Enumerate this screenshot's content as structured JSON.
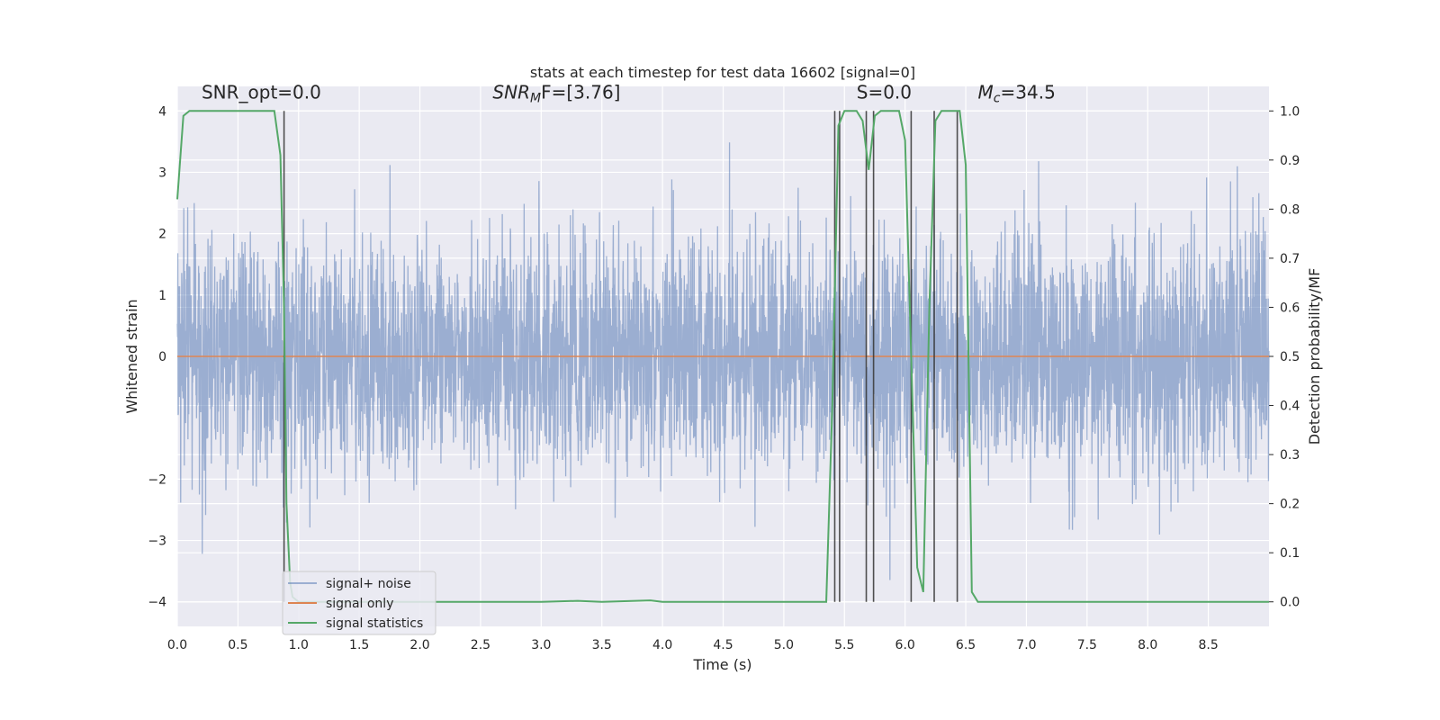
{
  "chart_data": {
    "type": "line",
    "title": "stats at each timestep for test data 16602 [signal=0]",
    "xlabel": "Time (s)",
    "ylabel": "Whitened strain",
    "ylabel_right": "Detection probability/MF",
    "xlim": [
      0.0,
      9.0
    ],
    "ylim_left": [
      -4.4,
      4.4
    ],
    "ylim_right": [
      -0.05,
      1.05
    ],
    "x_ticks": [
      "0.0",
      "0.5",
      "1.0",
      "1.5",
      "2.0",
      "2.5",
      "3.0",
      "3.5",
      "4.0",
      "4.5",
      "5.0",
      "5.5",
      "6.0",
      "6.5",
      "7.0",
      "7.5",
      "8.0",
      "8.5"
    ],
    "y_left_ticks": [
      "4",
      "3",
      "2",
      "1",
      "0",
      "−2",
      "−3",
      "−4"
    ],
    "y_right_ticks": [
      "1.0",
      "0.9",
      "0.8",
      "0.7",
      "0.6",
      "0.5",
      "0.4",
      "0.3",
      "0.2",
      "0.1",
      "0.0"
    ],
    "grid": true,
    "legend_position": "bottom-left",
    "annotations": [
      {
        "text": "SNR_opt=0.0",
        "x": 0.2,
        "y": 1.025
      },
      {
        "text_main": "SNR",
        "text_sub": "M",
        "text_tail": "F=[3.76]",
        "x": 2.6,
        "y": 1.025
      },
      {
        "text": "S=0.0",
        "x": 5.6,
        "y": 1.025
      },
      {
        "text_main": "M",
        "text_sub": "c",
        "text_tail": "=34.5",
        "x": 6.6,
        "y": 1.025
      }
    ],
    "series": [
      {
        "name": "signal+ noise",
        "color": "#4c72b0",
        "alpha": 0.5,
        "axis": "left",
        "kind": "noise",
        "amplitude_sd": 0.95
      },
      {
        "name": "signal only",
        "color": "#dd8452",
        "axis": "left",
        "values_constant": 0.0
      },
      {
        "name": "signal statistics",
        "color": "#55a868",
        "axis": "right",
        "x": [
          0.0,
          0.05,
          0.1,
          0.2,
          0.3,
          0.4,
          0.5,
          0.6,
          0.7,
          0.8,
          0.85,
          0.88,
          0.9,
          0.93,
          0.95,
          1.0,
          1.5,
          2.0,
          2.5,
          3.0,
          3.3,
          3.5,
          3.9,
          4.0,
          4.5,
          5.0,
          5.35,
          5.4,
          5.45,
          5.5,
          5.6,
          5.65,
          5.7,
          5.75,
          5.8,
          5.85,
          5.95,
          6.0,
          6.05,
          6.1,
          6.15,
          6.2,
          6.25,
          6.3,
          6.35,
          6.45,
          6.5,
          6.55,
          6.6,
          6.7,
          7.0,
          8.0,
          9.0
        ],
        "y": [
          0.82,
          0.99,
          1.0,
          1.0,
          1.0,
          1.0,
          1.0,
          1.0,
          1.0,
          1.0,
          0.91,
          0.6,
          0.2,
          0.04,
          0.01,
          0.0,
          0.0,
          0.0,
          0.0,
          0.0,
          0.002,
          0.0,
          0.003,
          0.0,
          0.0,
          0.0,
          0.0,
          0.4,
          0.97,
          1.0,
          1.0,
          0.98,
          0.88,
          0.99,
          1.0,
          1.0,
          1.0,
          0.94,
          0.5,
          0.07,
          0.02,
          0.6,
          0.98,
          1.0,
          1.0,
          1.0,
          0.89,
          0.02,
          0.0,
          0.0,
          0.0,
          0.0,
          0.0
        ]
      },
      {
        "name": "",
        "kind": "vlines",
        "color": "#333333",
        "axis": "right",
        "x": [
          0.88,
          5.42,
          5.46,
          5.68,
          5.74,
          6.05,
          6.24,
          6.43
        ],
        "ymin": 0.0,
        "ymax": 1.0
      }
    ]
  }
}
